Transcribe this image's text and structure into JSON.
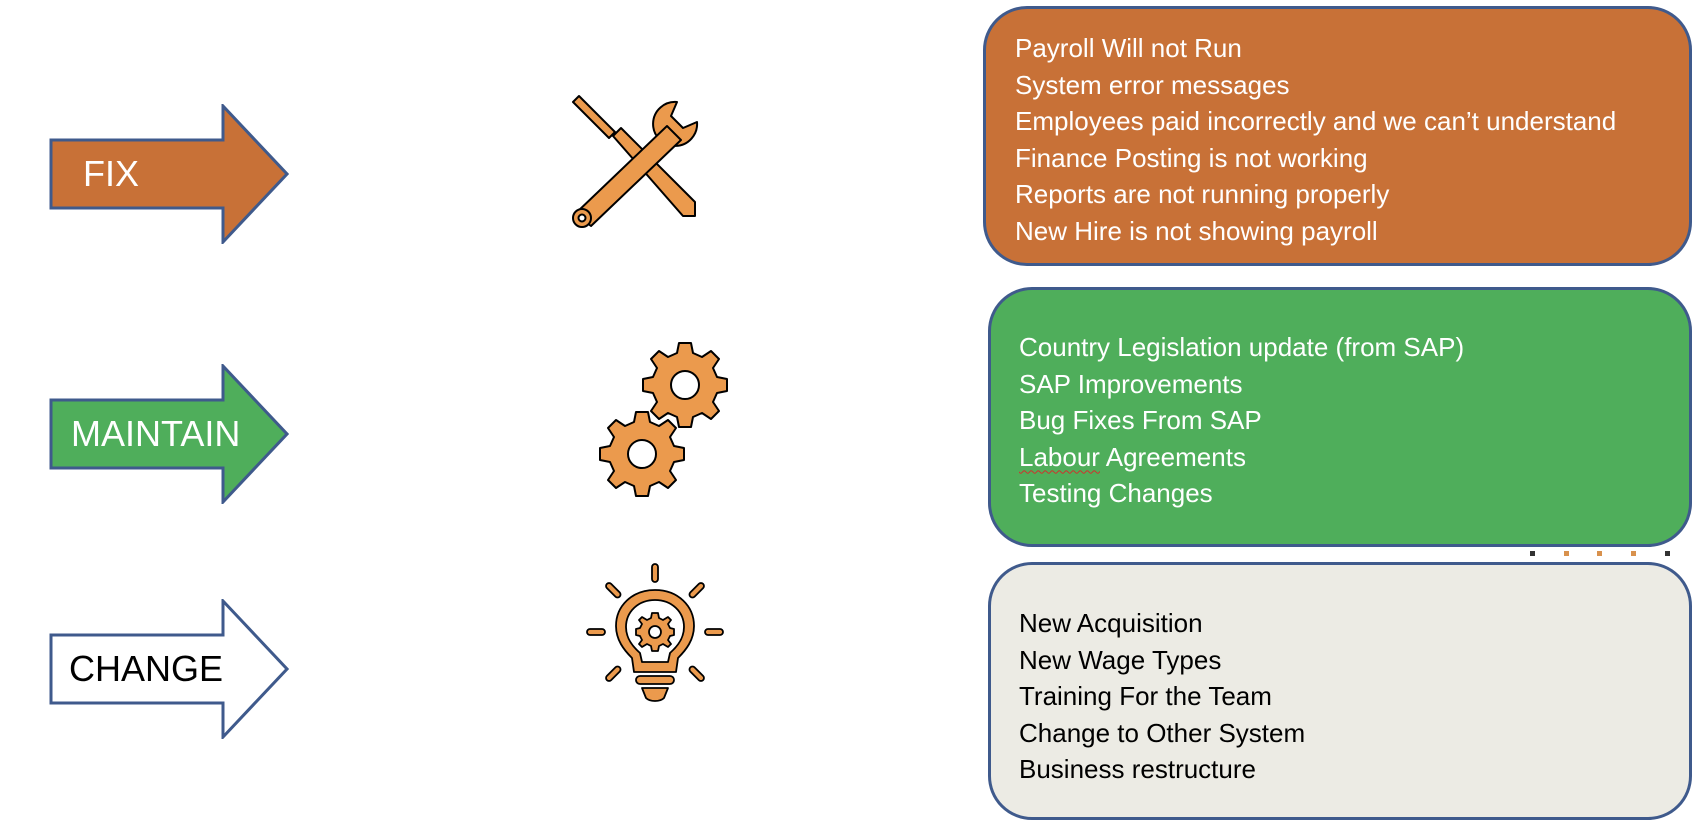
{
  "categories": [
    {
      "label": "FIX",
      "arrow_color": "#c87137",
      "icon": "tools-icon",
      "box_color": "#c87137",
      "items": [
        "Payroll Will not Run",
        "System error messages",
        "Employees paid incorrectly and we can’t understand",
        "Finance Posting is not working",
        "Reports are not running properly",
        "New Hire is not showing payroll"
      ]
    },
    {
      "label": "MAINTAIN",
      "arrow_color": "#4fae5b",
      "icon": "gears-icon",
      "box_color": "#4fae5b",
      "items": [
        "Country Legislation update (from SAP)",
        "SAP Improvements",
        "Bug Fixes From SAP",
        "Labour Agreements",
        "Testing Changes"
      ]
    },
    {
      "label": "CHANGE",
      "arrow_color": "#ffffff",
      "icon": "lightbulb-gear-icon",
      "box_color": "#ecebe4",
      "items": [
        "New Acquisition",
        "New Wage Types",
        "Training For the Team",
        "Change to Other System",
        "Business restructure"
      ]
    }
  ],
  "colors": {
    "outline": "#3f5a8c",
    "icon_fill": "#eb9a4d",
    "icon_stroke": "#000000"
  }
}
